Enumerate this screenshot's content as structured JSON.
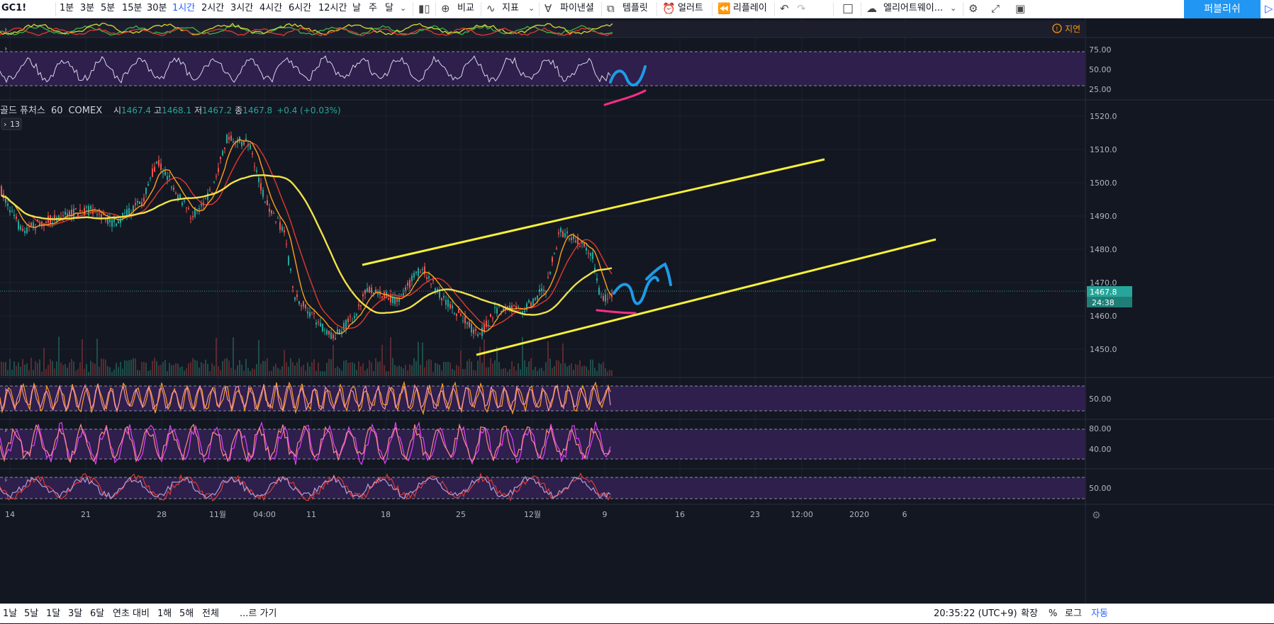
{
  "toolbar": {
    "symbol": "GC1!",
    "intervals": [
      "1분",
      "3분",
      "5분",
      "15분",
      "30분",
      "1시간",
      "2시간",
      "3시간",
      "4시간",
      "6시간",
      "12시간",
      "날",
      "주",
      "달"
    ],
    "active_interval": "1시간",
    "compare": "비교",
    "indicators": "지표",
    "financials": "파이낸셜",
    "templates": "템플릿",
    "alert": "얼러트",
    "replay": "리플레이",
    "layout_name": "엘리어트웨이...",
    "publish": "퍼블리쉬"
  },
  "legend": {
    "name": "골드 퓨처스",
    "interval": "60",
    "exchange": "COMEX",
    "open_label": "시",
    "open": "1467.4",
    "high_label": "고",
    "high": "1468.1",
    "low_label": "저",
    "low": "1467.2",
    "close_label": "종",
    "close": "1467.8",
    "change": "+0.4 (+0.03%)",
    "collapsed_count": "13"
  },
  "delay_badge": "지연",
  "price_axis": [
    "1520.0",
    "1510.0",
    "1500.0",
    "1490.0",
    "1480.0",
    "1470.0",
    "1460.0",
    "1450.0"
  ],
  "price_label": "1467.8",
  "countdown": "24:38",
  "rsi_axis": [
    "75.00",
    "50.00",
    "25.00"
  ],
  "stoch1_axis": [
    "50.00"
  ],
  "stoch2_axis": [
    "80.00",
    "40.00"
  ],
  "stoch3_axis": [
    "50.00"
  ],
  "time_axis": [
    "14",
    "21",
    "28",
    "11월",
    "04:00",
    "11",
    "18",
    "25",
    "12월",
    "9",
    "16",
    "23",
    "12:00",
    "2020",
    "6"
  ],
  "bottom": {
    "ranges": [
      "1날",
      "5날",
      "1달",
      "3달",
      "6달",
      "연초 대비",
      "1해",
      "5해",
      "전체"
    ],
    "goto": "...르 가기",
    "clock": "20:35:22 (UTC+9)",
    "scale_options": [
      "확장",
      "%",
      "로그",
      "자동"
    ]
  },
  "colors": {
    "background": "#131722",
    "band": "#2e1f4d",
    "trendline": "#f5f03a",
    "drawing_blue": "#1e9be6",
    "drawing_pink": "#ff2d8a",
    "last_price": "#26a69a"
  }
}
